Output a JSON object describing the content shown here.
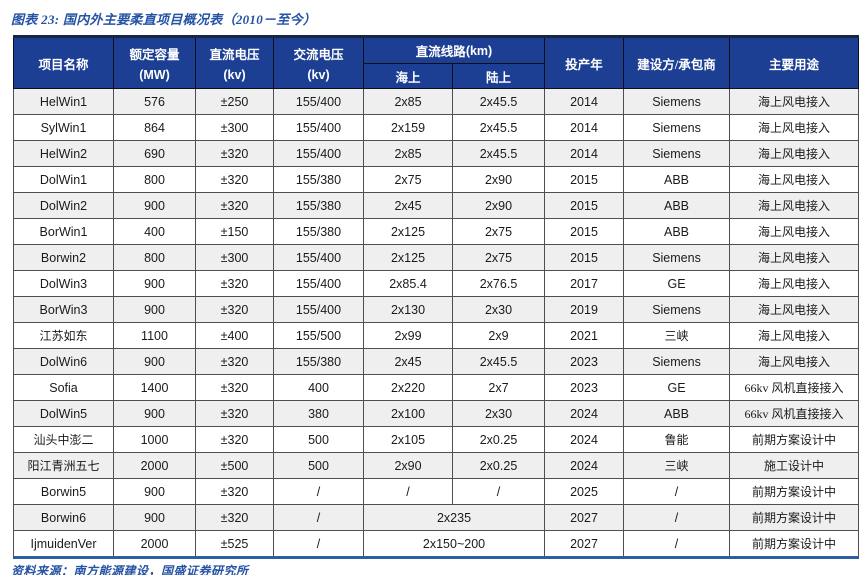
{
  "figure": {
    "title": "图表 23:  国内外主要柔直项目概况表（2010－至今）",
    "source": "资料来源：南方能源建设，国盛证券研究所"
  },
  "colors": {
    "header_bg": "#1c3f94",
    "title_blue": "#2553a5",
    "row_alt_gray": "#efefef",
    "bottom_border_blue": "#2e5fa3",
    "top_border_dark": "#182644"
  },
  "table": {
    "headers": {
      "project": "项目名称",
      "capacity_l1": "额定容量",
      "capacity_l2": "(MW)",
      "dc_voltage_l1": "直流电压",
      "dc_voltage_l2": "(kv)",
      "ac_voltage_l1": "交流电压",
      "ac_voltage_l2": "(kv)",
      "dc_line": "直流线路",
      "dc_line_unit": "(km)",
      "offshore": "海上",
      "onshore": "陆上",
      "year": "投产年",
      "builder": "建设方/承包商",
      "usage": "主要用途"
    },
    "rows": [
      [
        "HelWin1",
        "576",
        "±250",
        "155/400",
        "2x85",
        "2x45.5",
        "2014",
        "Siemens",
        "海上风电接入"
      ],
      [
        "SylWin1",
        "864",
        "±300",
        "155/400",
        "2x159",
        "2x45.5",
        "2014",
        "Siemens",
        "海上风电接入"
      ],
      [
        "HelWin2",
        "690",
        "±320",
        "155/400",
        "2x85",
        "2x45.5",
        "2014",
        "Siemens",
        "海上风电接入"
      ],
      [
        "DolWin1",
        "800",
        "±320",
        "155/380",
        "2x75",
        "2x90",
        "2015",
        "ABB",
        "海上风电接入"
      ],
      [
        "DolWin2",
        "900",
        "±320",
        "155/380",
        "2x45",
        "2x90",
        "2015",
        "ABB",
        "海上风电接入"
      ],
      [
        "BorWin1",
        "400",
        "±150",
        "155/380",
        "2x125",
        "2x75",
        "2015",
        "ABB",
        "海上风电接入"
      ],
      [
        "Borwin2",
        "800",
        "±300",
        "155/400",
        "2x125",
        "2x75",
        "2015",
        "Siemens",
        "海上风电接入"
      ],
      [
        "DolWin3",
        "900",
        "±320",
        "155/400",
        "2x85.4",
        "2x76.5",
        "2017",
        "GE",
        "海上风电接入"
      ],
      [
        "BorWin3",
        "900",
        "±320",
        "155/400",
        "2x130",
        "2x30",
        "2019",
        "Siemens",
        "海上风电接入"
      ],
      [
        "江苏如东",
        "1100",
        "±400",
        "155/500",
        "2x99",
        "2x9",
        "2021",
        "三峡",
        "海上风电接入"
      ],
      [
        "DolWin6",
        "900",
        "±320",
        "155/380",
        "2x45",
        "2x45.5",
        "2023",
        "Siemens",
        "海上风电接入"
      ],
      [
        "Sofia",
        "1400",
        "±320",
        "400",
        "2x220",
        "2x7",
        "2023",
        "GE",
        "66kv 风机直接接入"
      ],
      [
        "DolWin5",
        "900",
        "±320",
        "380",
        "2x100",
        "2x30",
        "2024",
        "ABB",
        "66kv 风机直接接入"
      ],
      [
        "汕头中澎二",
        "1000",
        "±320",
        "500",
        "2x105",
        "2x0.25",
        "2024",
        "鲁能",
        "前期方案设计中"
      ],
      [
        "阳江青洲五七",
        "2000",
        "±500",
        "500",
        "2x90",
        "2x0.25",
        "2024",
        "三峡",
        "施工设计中"
      ],
      [
        "Borwin5",
        "900",
        "±320",
        "/",
        "/",
        "/",
        "2025",
        "/",
        "前期方案设计中"
      ],
      [
        "Borwin6",
        "900",
        "±320",
        "/",
        {
          "text": "2x235",
          "colspan": 2
        },
        "2027",
        "/",
        "前期方案设计中"
      ],
      [
        "IjmuidenVer",
        "2000",
        "±525",
        "/",
        {
          "text": "2x150~200",
          "colspan": 2
        },
        "2027",
        "/",
        "前期方案设计中"
      ]
    ]
  }
}
